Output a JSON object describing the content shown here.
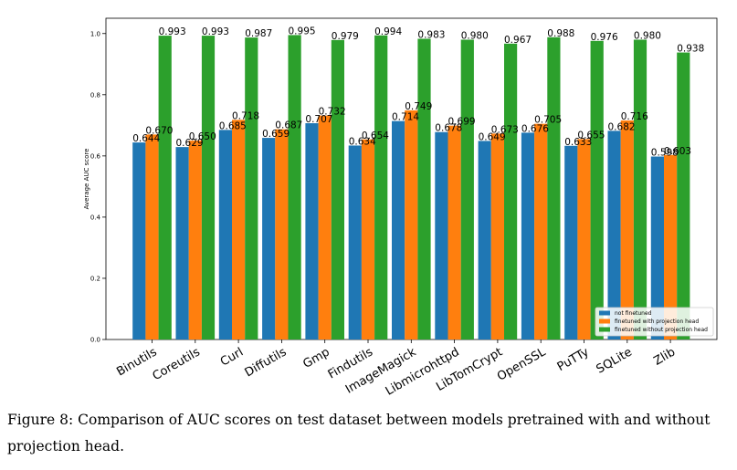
{
  "chart_data": {
    "type": "bar",
    "ylabel": "Average AUC score",
    "ylim": [
      0,
      1.05
    ],
    "yticks": [
      "0.0",
      "0.2",
      "0.4",
      "0.6",
      "0.8",
      "1.0"
    ],
    "categories": [
      "Binutils",
      "Coreutils",
      "Curl",
      "Diffutils",
      "Gmp",
      "Findutils",
      "ImageMagick",
      "Libmicrohttpd",
      "LibTomCrypt",
      "OpenSSL",
      "PuTTy",
      "SQLite",
      "Zlib"
    ],
    "series": [
      {
        "name": "not finetuned",
        "color": "#1f77b4",
        "values": [
          0.644,
          0.629,
          0.685,
          0.659,
          0.707,
          0.634,
          0.714,
          0.678,
          0.649,
          0.676,
          0.633,
          0.682,
          0.598
        ],
        "labels": [
          "0.644",
          "0.629",
          "0.685",
          "0.659",
          "0.707",
          "0.634",
          "0.714",
          "0.678",
          "0.649",
          "0.676",
          "0.633",
          "0.682",
          "0.598"
        ]
      },
      {
        "name": "finetuned with projection head",
        "color": "#ff7f0e",
        "values": [
          0.67,
          0.65,
          0.718,
          0.687,
          0.732,
          0.654,
          0.749,
          0.699,
          0.673,
          0.705,
          0.655,
          0.716,
          0.603
        ],
        "labels": [
          "0.670",
          "0.650",
          "0.718",
          "0.687",
          "0.732",
          "0.654",
          "0.749",
          "0.699",
          "0.673",
          "0.705",
          "0.655",
          "0.716",
          "0.603"
        ]
      },
      {
        "name": "finetuned without projection head",
        "color": "#2ca02c",
        "values": [
          0.993,
          0.993,
          0.987,
          0.995,
          0.979,
          0.994,
          0.983,
          0.98,
          0.967,
          0.988,
          0.976,
          0.98,
          0.938
        ],
        "labels": [
          "0.993",
          "0.993",
          "0.987",
          "0.995",
          "0.979",
          "0.994",
          "0.983",
          "0.980",
          "0.967",
          "0.988",
          "0.976",
          "0.980",
          "0.938"
        ]
      }
    ],
    "legend_position": "lower right",
    "grid": false
  },
  "caption": "Figure 8: Comparison of AUC scores on test dataset between models pretrained with and without projection head."
}
